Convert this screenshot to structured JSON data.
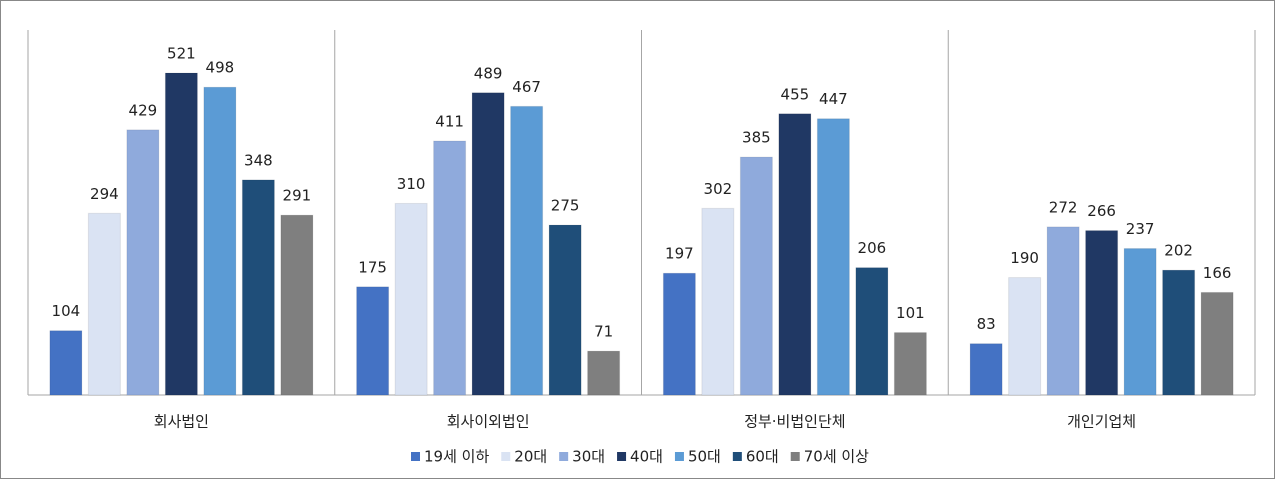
{
  "chart_data": {
    "type": "bar",
    "categories": [
      "회사법인",
      "회사이외법인",
      "정부·비법인단체",
      "개인기업체"
    ],
    "series": [
      {
        "name": "19세 이하",
        "color": "#4472c4",
        "values": [
          104,
          175,
          197,
          83
        ]
      },
      {
        "name": "20대",
        "color": "#dae3f3",
        "values": [
          294,
          310,
          302,
          190
        ]
      },
      {
        "name": "30대",
        "color": "#8faadc",
        "values": [
          429,
          411,
          385,
          272
        ]
      },
      {
        "name": "40대",
        "color": "#203864",
        "values": [
          521,
          489,
          455,
          266
        ]
      },
      {
        "name": "50대",
        "color": "#5b9bd5",
        "values": [
          498,
          467,
          447,
          237
        ]
      },
      {
        "name": "60대",
        "color": "#1f4e79",
        "values": [
          348,
          275,
          206,
          202
        ]
      },
      {
        "name": "70세 이상",
        "color": "#7f7f7f",
        "values": [
          291,
          71,
          101,
          166
        ]
      }
    ],
    "legend": "bottom"
  }
}
